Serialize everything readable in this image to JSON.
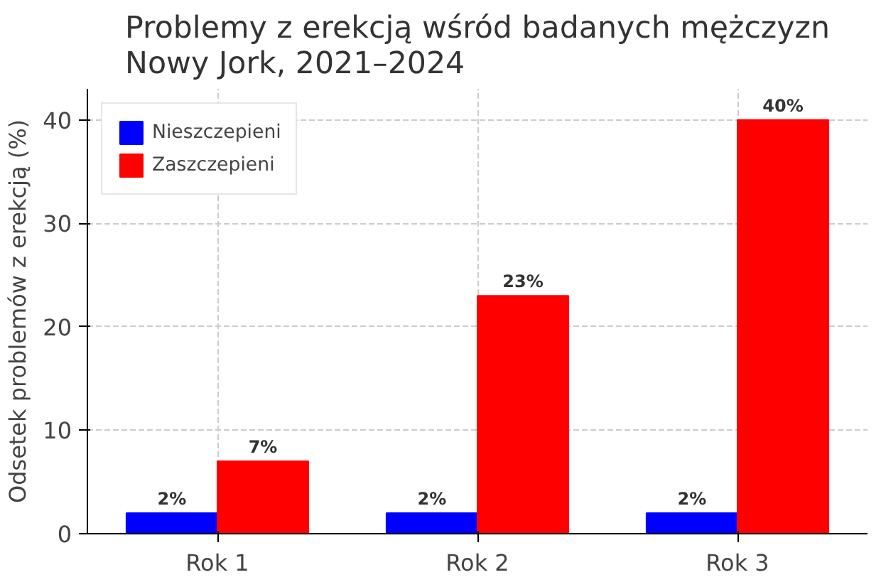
{
  "chart_data": {
    "type": "bar",
    "title": "Problemy z erekcją wśród badanych mężczyzn\nNowy Jork, 2021–2024",
    "ylabel": "Odsetek problemów z erekcją (%)",
    "categories": [
      "Rok 1",
      "Rok 2",
      "Rok 3"
    ],
    "series": [
      {
        "name": "Nieszczepieni",
        "color": "#0000ff",
        "values": [
          2,
          2,
          2
        ],
        "value_labels": [
          "2%",
          "2%",
          "2%"
        ]
      },
      {
        "name": "Zaszczepieni",
        "color": "#ff0000",
        "values": [
          7,
          23,
          40
        ],
        "value_labels": [
          "7%",
          "23%",
          "40%"
        ]
      }
    ],
    "ylim": [
      0,
      43
    ],
    "yticks": [
      0,
      10,
      20,
      30,
      40
    ],
    "grid": true,
    "legend": "top left"
  }
}
